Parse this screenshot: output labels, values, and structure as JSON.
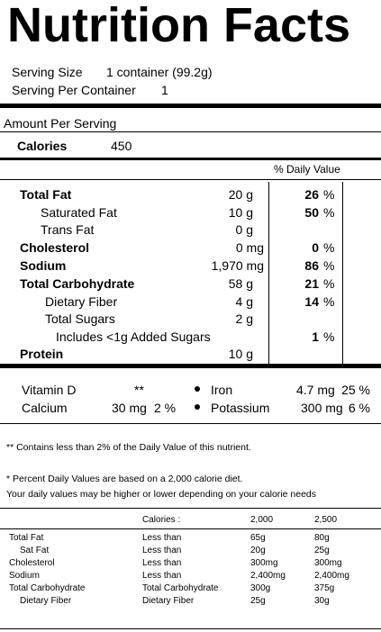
{
  "title": "Nutrition Facts",
  "serving": {
    "size_label": "Serving Size",
    "size_value": "1  container (99.2g)",
    "per_container_label": "Serving Per Container",
    "per_container_value": "1"
  },
  "amount_per_serving": "Amount Per Serving",
  "calories": {
    "label": "Calories",
    "value": "450"
  },
  "daily_value_header": "% Daily Value",
  "nutrients": [
    {
      "label": "Total Fat",
      "amount": "20 g",
      "dv": "26",
      "pct": "%"
    },
    {
      "label": "Saturated Fat",
      "amount": "10 g",
      "dv": "50",
      "pct": "%"
    },
    {
      "label": "Trans Fat",
      "amount": "0 g",
      "dv": "",
      "pct": ""
    },
    {
      "label": "Cholesterol",
      "amount": "0 mg",
      "dv": "0",
      "pct": "%"
    },
    {
      "label": "Sodium",
      "amount": "1,970 mg",
      "dv": "86",
      "pct": "%"
    },
    {
      "label": "Total Carbohydrate",
      "amount": "58 g",
      "dv": "21",
      "pct": "%"
    },
    {
      "label": "Dietary Fiber",
      "amount": "4 g",
      "dv": "14",
      "pct": "%"
    },
    {
      "label": "Total Sugars",
      "amount": "2 g",
      "dv": "",
      "pct": ""
    },
    {
      "label": "Includes <1g Added Sugars",
      "amount": "",
      "dv": "1",
      "pct": "%"
    },
    {
      "label": "Protein",
      "amount": "10 g",
      "dv": "",
      "pct": ""
    }
  ],
  "vitamins": [
    {
      "label": "Vitamin D",
      "amount": "**",
      "dv": ""
    },
    {
      "label": "Iron",
      "amount": "4.7 mg",
      "dv": "25 %"
    },
    {
      "label": "Calcium",
      "amount": "30 mg",
      "dv": "2 %"
    },
    {
      "label": "Potassium",
      "amount": "300 mg",
      "dv": "6 %"
    }
  ],
  "footnote_trace": "** Contains less than 2% of the Daily Value of this nutrient.",
  "footnote_dv_1": "*  Percent Daily Values are based on a 2,000 calorie diet.",
  "footnote_dv_2": "Your daily values may be higher or lower depending on your calorie needs",
  "reference_table": {
    "headers": [
      "",
      "Calories :",
      "2,000",
      "2,500"
    ],
    "rows": [
      [
        "Total Fat",
        "Less than",
        "65g",
        "80g"
      ],
      [
        "Sat Fat",
        "Less than",
        "20g",
        "25g"
      ],
      [
        "Cholesterol",
        "Less than",
        "300mg",
        "300mg"
      ],
      [
        "Sodium",
        "Less than",
        "2,400mg",
        "2,400mg"
      ],
      [
        "Total Carbohydrate",
        "Total Carbohydrate",
        "300g",
        "375g"
      ],
      [
        "Dietary Fiber",
        "Dietary Fiber",
        "25g",
        "30g"
      ]
    ]
  }
}
